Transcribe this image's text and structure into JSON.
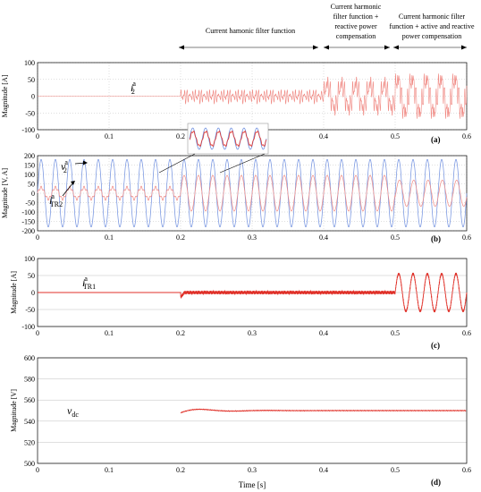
{
  "annotations": {
    "seg1": "Current hamonic filter function",
    "seg2": [
      "Current harmonic",
      "filter function +",
      "reactive power",
      "compensation"
    ],
    "seg3": [
      "Current harmonic filter",
      "function + active and reactive",
      "power compensation"
    ]
  },
  "colors": {
    "red": "#e0322a",
    "light_red": "#f08a84",
    "blue": "#6f8fdf",
    "grid": "#bfbfbf"
  },
  "chart_data": [
    {
      "type": "line",
      "panel_label": "(a)",
      "ylabel": "Magnitude [A]",
      "series_label": "i2a",
      "series_label_parts": {
        "base": "i",
        "sub": "2",
        "sup": "a"
      },
      "xlim": [
        0,
        0.6
      ],
      "ylim": [
        -100,
        100
      ],
      "xticks": [
        "0",
        "0.1",
        "0.2",
        "0.3",
        "0.4",
        "0.5",
        "0.6"
      ],
      "yticks": [
        "100",
        "50",
        "0",
        "-50",
        "-100"
      ],
      "series": [
        {
          "segment": "0-0.2 s",
          "amplitude": 0
        },
        {
          "segment": "0.2-0.4 s",
          "amplitude": 25
        },
        {
          "segment": "0.4-0.5 s",
          "amplitude": 55
        },
        {
          "segment": "0.5-0.6 s",
          "amplitude": 75
        }
      ]
    },
    {
      "type": "line",
      "panel_label": "(b)",
      "ylabel": "Magnitude [V, A]",
      "series_labels": [
        {
          "base": "v",
          "sub": "2",
          "sup": "a"
        },
        {
          "base": "i",
          "sub": "TR2",
          "sup": "a"
        }
      ],
      "xlim": [
        0,
        0.6
      ],
      "ylim": [
        -200,
        200
      ],
      "xticks": [
        "0",
        "0.1",
        "0.2",
        "0.3",
        "0.4",
        "0.5",
        "0.6"
      ],
      "yticks": [
        "200",
        "150",
        "100",
        "50",
        "0",
        "-50",
        "-100",
        "-150",
        "-200"
      ],
      "series": [
        {
          "name": "v2a",
          "frequency_hz": 50,
          "amplitude": 180
        },
        {
          "name": "iTR2a",
          "segments": [
            {
              "segment": "0-0.2 s",
              "amplitude": 30
            },
            {
              "segment": "0.2-0.5 s",
              "amplitude": 95
            },
            {
              "segment": "0.5-0.6 s",
              "amplitude": 70
            }
          ]
        }
      ]
    },
    {
      "type": "line",
      "panel_label": "(c)",
      "ylabel": "Magnitude [A]",
      "series_label_parts": {
        "base": "i",
        "sub": "TR1",
        "sup": "a"
      },
      "xlim": [
        0,
        0.6
      ],
      "ylim": [
        -100,
        100
      ],
      "xticks": [
        "0",
        "0.1",
        "0.2",
        "0.3",
        "0.4",
        "0.5",
        "0.6"
      ],
      "yticks": [
        "100",
        "50",
        "0",
        "-50",
        "-100"
      ],
      "series": [
        {
          "segment": "0-0.2 s",
          "amplitude": 0
        },
        {
          "segment": "0.2-0.5 s",
          "amplitude": 5
        },
        {
          "segment": "0.5-0.6 s",
          "amplitude": 55
        }
      ]
    },
    {
      "type": "line",
      "panel_label": "(d)",
      "ylabel": "Magnitude [V]",
      "xlabel": "Time [s]",
      "series_label_parts": {
        "base": "v",
        "sub": "dc"
      },
      "xlim": [
        0,
        0.6
      ],
      "ylim": [
        500,
        600
      ],
      "xticks": [
        "0",
        "0.1",
        "0.2",
        "0.3",
        "0.4",
        "0.5",
        "0.6"
      ],
      "yticks": [
        "600",
        "580",
        "560",
        "540",
        "520",
        "500"
      ],
      "series": [
        {
          "segment": "0.2-0.6 s",
          "steady_value": 550,
          "initial_value": 548,
          "peak_value": 552
        }
      ]
    }
  ]
}
